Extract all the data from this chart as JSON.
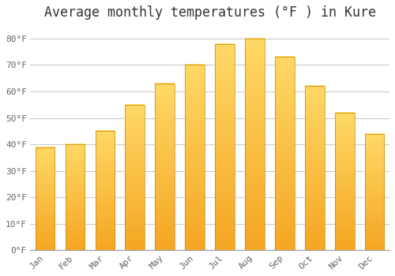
{
  "title": "Average monthly temperatures (°F ) in Kure",
  "months": [
    "Jan",
    "Feb",
    "Mar",
    "Apr",
    "May",
    "Jun",
    "Jul",
    "Aug",
    "Sep",
    "Oct",
    "Nov",
    "Dec"
  ],
  "values": [
    39,
    40,
    45,
    55,
    63,
    70,
    78,
    80,
    73,
    62,
    52,
    44
  ],
  "bar_color_bottom": "#F5A623",
  "bar_color_top": "#FFD966",
  "bar_edge_color": "#C8860A",
  "ylim": [
    0,
    85
  ],
  "yticks": [
    0,
    10,
    20,
    30,
    40,
    50,
    60,
    70,
    80
  ],
  "ytick_labels": [
    "0°F",
    "10°F",
    "20°F",
    "30°F",
    "40°F",
    "50°F",
    "60°F",
    "70°F",
    "80°F"
  ],
  "background_color": "#FFFFFF",
  "grid_color": "#CCCCCC",
  "title_fontsize": 12,
  "tick_fontsize": 8,
  "tick_color": "#666666",
  "font_family": "monospace"
}
